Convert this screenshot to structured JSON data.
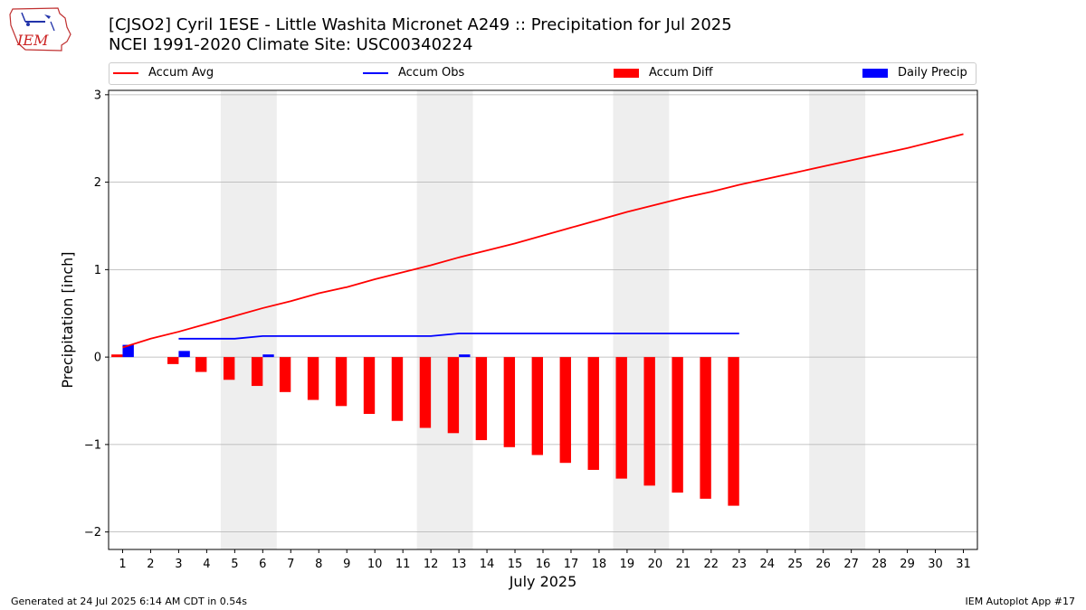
{
  "header": {
    "title": "[CJSO2] Cyril 1ESE - Little Washita Micronet A249 :: Precipitation for Jul 2025",
    "subtitle": "NCEI 1991-2020 Climate Site: USC00340224",
    "logo_text": "IEM"
  },
  "footer": {
    "generated": "Generated at 24 Jul 2025 6:14 AM CDT in 0.54s",
    "app": "IEM Autoplot App #17"
  },
  "colors": {
    "avg": "#ff0000",
    "obs": "#0000ff",
    "diff": "#ff0000",
    "daily": "#0000ff",
    "weekend": "#eeeeee",
    "grid": "#b0b0b0"
  },
  "chart_data": {
    "type": "line",
    "title": "[CJSO2] Cyril 1ESE - Little Washita Micronet A249 :: Precipitation for Jul 2025",
    "xlabel": "July 2025",
    "ylabel": "Precipitation [inch]",
    "xlim": [
      0.5,
      31.5
    ],
    "ylim": [
      -2.2,
      3.05
    ],
    "yticks": [
      -2,
      -1,
      0,
      1,
      2,
      3
    ],
    "ytick_labels": [
      "−2",
      "−1",
      "0",
      "1",
      "2",
      "3"
    ],
    "days": [
      1,
      2,
      3,
      4,
      5,
      6,
      7,
      8,
      9,
      10,
      11,
      12,
      13,
      14,
      15,
      16,
      17,
      18,
      19,
      20,
      21,
      22,
      23,
      24,
      25,
      26,
      27,
      28,
      29,
      30,
      31
    ],
    "shaded_days": [
      [
        4.5,
        6.5
      ],
      [
        11.5,
        13.5
      ],
      [
        18.5,
        20.5
      ],
      [
        25.5,
        27.5
      ]
    ],
    "legend": [
      "Accum Avg",
      "Accum Obs",
      "Accum Diff",
      "Daily Precip"
    ],
    "series": [
      {
        "name": "Accum Avg",
        "kind": "line",
        "values": [
          0.11,
          0.21,
          0.29,
          0.38,
          0.47,
          0.56,
          0.64,
          0.73,
          0.8,
          0.89,
          0.97,
          1.05,
          1.14,
          1.22,
          1.3,
          1.39,
          1.48,
          1.57,
          1.66,
          1.74,
          1.82,
          1.89,
          1.97,
          2.04,
          2.11,
          2.18,
          2.25,
          2.32,
          2.39,
          2.47,
          2.55
        ]
      },
      {
        "name": "Accum Obs",
        "kind": "line",
        "start_day": 3,
        "values": [
          0.21,
          0.21,
          0.21,
          0.24,
          0.24,
          0.24,
          0.24,
          0.24,
          0.24,
          0.24,
          0.27,
          0.27,
          0.27,
          0.27,
          0.27,
          0.27,
          0.27,
          0.27,
          0.27,
          0.27,
          0.27
        ]
      },
      {
        "name": "Accum Diff",
        "kind": "bar",
        "values": [
          0.03,
          0.0,
          -0.08,
          -0.17,
          -0.26,
          -0.33,
          -0.4,
          -0.49,
          -0.56,
          -0.65,
          -0.73,
          -0.81,
          -0.87,
          -0.95,
          -1.03,
          -1.12,
          -1.21,
          -1.29,
          -1.39,
          -1.47,
          -1.55,
          -1.62,
          -1.7
        ]
      },
      {
        "name": "Daily Precip",
        "kind": "bar",
        "values": [
          0.14,
          0.0,
          0.07,
          0.0,
          0.0,
          0.03,
          0.0,
          0.0,
          0.0,
          0.0,
          0.0,
          0.0,
          0.03,
          0.0,
          0.0,
          0.0,
          0.0,
          0.0,
          0.0,
          0.0,
          0.0,
          0.0,
          0.0
        ]
      }
    ]
  }
}
